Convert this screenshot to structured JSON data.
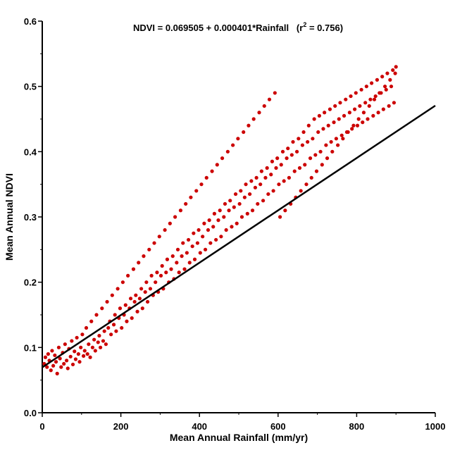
{
  "chart_data": {
    "type": "scatter",
    "title": "",
    "annotation": {
      "prefix": "NDVI = 0.069505 + 0.000401*Rainfall",
      "r2_open": "(r",
      "r2_sup": "2",
      "r2_rest": " = 0.756)"
    },
    "xlabel": "Mean Annual Rainfall (mm/yr)",
    "ylabel": "Mean Annual NDVI",
    "xlim": [
      0,
      1000
    ],
    "ylim": [
      0,
      0.6
    ],
    "xticks": [
      "0",
      "200",
      "400",
      "600",
      "800",
      "1000"
    ],
    "yticks": [
      "0.0",
      "0.1",
      "0.2",
      "0.3",
      "0.4",
      "0.5",
      "0.6"
    ],
    "grid": false,
    "legend": "none",
    "regression": {
      "intercept": 0.069505,
      "slope": 0.000401,
      "r2": 0.756,
      "x_range": [
        0,
        1000
      ]
    },
    "point_color": "#cc0000",
    "line_color": "#000000",
    "series": [
      {
        "values": [
          [
            5,
            0.075
          ],
          [
            8,
            0.085
          ],
          [
            12,
            0.07
          ],
          [
            15,
            0.09
          ],
          [
            18,
            0.08
          ],
          [
            22,
            0.065
          ],
          [
            25,
            0.095
          ],
          [
            28,
            0.072
          ],
          [
            32,
            0.088
          ],
          [
            35,
            0.078
          ],
          [
            38,
            0.06
          ],
          [
            42,
            0.1
          ],
          [
            45,
            0.083
          ],
          [
            48,
            0.07
          ],
          [
            52,
            0.092
          ],
          [
            55,
            0.075
          ],
          [
            58,
            0.105
          ],
          [
            62,
            0.08
          ],
          [
            65,
            0.068
          ],
          [
            68,
            0.098
          ],
          [
            72,
            0.086
          ],
          [
            75,
            0.11
          ],
          [
            78,
            0.074
          ],
          [
            82,
            0.094
          ],
          [
            85,
            0.082
          ],
          [
            88,
            0.115
          ],
          [
            92,
            0.09
          ],
          [
            95,
            0.078
          ],
          [
            98,
            0.1
          ],
          [
            102,
            0.12
          ],
          [
            105,
            0.087
          ],
          [
            108,
            0.095
          ],
          [
            112,
            0.13
          ],
          [
            115,
            0.09
          ],
          [
            118,
            0.105
          ],
          [
            122,
            0.085
          ],
          [
            125,
            0.14
          ],
          [
            128,
            0.1
          ],
          [
            132,
            0.112
          ],
          [
            135,
            0.095
          ],
          [
            138,
            0.15
          ],
          [
            142,
            0.108
          ],
          [
            145,
            0.118
          ],
          [
            148,
            0.1
          ],
          [
            152,
            0.16
          ],
          [
            155,
            0.11
          ],
          [
            158,
            0.125
          ],
          [
            162,
            0.105
          ],
          [
            165,
            0.17
          ],
          [
            168,
            0.13
          ],
          [
            172,
            0.14
          ],
          [
            175,
            0.12
          ],
          [
            178,
            0.18
          ],
          [
            182,
            0.135
          ],
          [
            185,
            0.15
          ],
          [
            188,
            0.125
          ],
          [
            192,
            0.19
          ],
          [
            195,
            0.145
          ],
          [
            198,
            0.16
          ],
          [
            202,
            0.13
          ],
          [
            205,
            0.2
          ],
          [
            208,
            0.15
          ],
          [
            212,
            0.165
          ],
          [
            215,
            0.14
          ],
          [
            218,
            0.21
          ],
          [
            222,
            0.16
          ],
          [
            225,
            0.175
          ],
          [
            228,
            0.145
          ],
          [
            232,
            0.22
          ],
          [
            235,
            0.17
          ],
          [
            238,
            0.18
          ],
          [
            242,
            0.155
          ],
          [
            245,
            0.23
          ],
          [
            248,
            0.175
          ],
          [
            252,
            0.19
          ],
          [
            255,
            0.16
          ],
          [
            258,
            0.24
          ],
          [
            262,
            0.185
          ],
          [
            265,
            0.2
          ],
          [
            268,
            0.17
          ],
          [
            272,
            0.25
          ],
          [
            275,
            0.19
          ],
          [
            278,
            0.21
          ],
          [
            282,
            0.18
          ],
          [
            285,
            0.26
          ],
          [
            288,
            0.2
          ],
          [
            292,
            0.215
          ],
          [
            295,
            0.185
          ],
          [
            298,
            0.27
          ],
          [
            302,
            0.21
          ],
          [
            305,
            0.225
          ],
          [
            308,
            0.19
          ],
          [
            312,
            0.28
          ],
          [
            315,
            0.215
          ],
          [
            318,
            0.235
          ],
          [
            322,
            0.2
          ],
          [
            325,
            0.29
          ],
          [
            328,
            0.22
          ],
          [
            332,
            0.24
          ],
          [
            335,
            0.205
          ],
          [
            338,
            0.3
          ],
          [
            342,
            0.23
          ],
          [
            345,
            0.25
          ],
          [
            348,
            0.215
          ],
          [
            352,
            0.31
          ],
          [
            355,
            0.24
          ],
          [
            358,
            0.26
          ],
          [
            362,
            0.22
          ],
          [
            365,
            0.32
          ],
          [
            368,
            0.245
          ],
          [
            372,
            0.265
          ],
          [
            375,
            0.23
          ],
          [
            378,
            0.33
          ],
          [
            382,
            0.255
          ],
          [
            385,
            0.275
          ],
          [
            388,
            0.235
          ],
          [
            392,
            0.34
          ],
          [
            395,
            0.26
          ],
          [
            398,
            0.28
          ],
          [
            402,
            0.245
          ],
          [
            405,
            0.35
          ],
          [
            408,
            0.27
          ],
          [
            412,
            0.29
          ],
          [
            415,
            0.25
          ],
          [
            418,
            0.36
          ],
          [
            422,
            0.28
          ],
          [
            425,
            0.295
          ],
          [
            428,
            0.26
          ],
          [
            432,
            0.37
          ],
          [
            435,
            0.285
          ],
          [
            438,
            0.305
          ],
          [
            442,
            0.265
          ],
          [
            445,
            0.38
          ],
          [
            448,
            0.295
          ],
          [
            452,
            0.31
          ],
          [
            455,
            0.27
          ],
          [
            458,
            0.39
          ],
          [
            462,
            0.3
          ],
          [
            465,
            0.32
          ],
          [
            468,
            0.28
          ],
          [
            472,
            0.4
          ],
          [
            475,
            0.31
          ],
          [
            478,
            0.325
          ],
          [
            482,
            0.285
          ],
          [
            485,
            0.41
          ],
          [
            488,
            0.315
          ],
          [
            492,
            0.335
          ],
          [
            495,
            0.29
          ],
          [
            498,
            0.42
          ],
          [
            502,
            0.32
          ],
          [
            505,
            0.34
          ],
          [
            508,
            0.3
          ],
          [
            512,
            0.43
          ],
          [
            515,
            0.33
          ],
          [
            518,
            0.35
          ],
          [
            522,
            0.305
          ],
          [
            525,
            0.44
          ],
          [
            528,
            0.335
          ],
          [
            532,
            0.355
          ],
          [
            535,
            0.31
          ],
          [
            538,
            0.45
          ],
          [
            542,
            0.345
          ],
          [
            545,
            0.36
          ],
          [
            548,
            0.32
          ],
          [
            552,
            0.46
          ],
          [
            555,
            0.35
          ],
          [
            558,
            0.37
          ],
          [
            562,
            0.325
          ],
          [
            565,
            0.47
          ],
          [
            568,
            0.36
          ],
          [
            572,
            0.375
          ],
          [
            575,
            0.335
          ],
          [
            578,
            0.48
          ],
          [
            582,
            0.365
          ],
          [
            585,
            0.385
          ],
          [
            588,
            0.34
          ],
          [
            592,
            0.49
          ],
          [
            595,
            0.375
          ],
          [
            598,
            0.39
          ],
          [
            602,
            0.35
          ],
          [
            605,
            0.3
          ],
          [
            608,
            0.38
          ],
          [
            612,
            0.4
          ],
          [
            615,
            0.355
          ],
          [
            618,
            0.31
          ],
          [
            622,
            0.39
          ],
          [
            625,
            0.405
          ],
          [
            628,
            0.36
          ],
          [
            632,
            0.32
          ],
          [
            635,
            0.395
          ],
          [
            638,
            0.415
          ],
          [
            642,
            0.37
          ],
          [
            645,
            0.33
          ],
          [
            648,
            0.4
          ],
          [
            652,
            0.42
          ],
          [
            655,
            0.375
          ],
          [
            658,
            0.34
          ],
          [
            662,
            0.41
          ],
          [
            665,
            0.43
          ],
          [
            668,
            0.38
          ],
          [
            672,
            0.35
          ],
          [
            675,
            0.415
          ],
          [
            678,
            0.44
          ],
          [
            682,
            0.39
          ],
          [
            685,
            0.36
          ],
          [
            688,
            0.42
          ],
          [
            692,
            0.45
          ],
          [
            695,
            0.395
          ],
          [
            698,
            0.37
          ],
          [
            702,
            0.43
          ],
          [
            705,
            0.455
          ],
          [
            708,
            0.4
          ],
          [
            712,
            0.38
          ],
          [
            715,
            0.435
          ],
          [
            718,
            0.46
          ],
          [
            722,
            0.41
          ],
          [
            725,
            0.39
          ],
          [
            728,
            0.44
          ],
          [
            732,
            0.465
          ],
          [
            735,
            0.415
          ],
          [
            738,
            0.4
          ],
          [
            742,
            0.445
          ],
          [
            745,
            0.47
          ],
          [
            748,
            0.42
          ],
          [
            752,
            0.41
          ],
          [
            755,
            0.45
          ],
          [
            758,
            0.475
          ],
          [
            762,
            0.425
          ],
          [
            765,
            0.42
          ],
          [
            768,
            0.455
          ],
          [
            772,
            0.48
          ],
          [
            775,
            0.43
          ],
          [
            778,
            0.43
          ],
          [
            782,
            0.46
          ],
          [
            785,
            0.485
          ],
          [
            788,
            0.435
          ],
          [
            792,
            0.44
          ],
          [
            795,
            0.465
          ],
          [
            798,
            0.49
          ],
          [
            802,
            0.44
          ],
          [
            805,
            0.45
          ],
          [
            808,
            0.47
          ],
          [
            812,
            0.495
          ],
          [
            815,
            0.445
          ],
          [
            818,
            0.46
          ],
          [
            822,
            0.475
          ],
          [
            825,
            0.5
          ],
          [
            828,
            0.45
          ],
          [
            832,
            0.47
          ],
          [
            835,
            0.48
          ],
          [
            838,
            0.505
          ],
          [
            842,
            0.455
          ],
          [
            845,
            0.48
          ],
          [
            848,
            0.485
          ],
          [
            852,
            0.51
          ],
          [
            855,
            0.46
          ],
          [
            858,
            0.49
          ],
          [
            862,
            0.49
          ],
          [
            865,
            0.515
          ],
          [
            868,
            0.465
          ],
          [
            872,
            0.5
          ],
          [
            875,
            0.495
          ],
          [
            878,
            0.52
          ],
          [
            882,
            0.47
          ],
          [
            885,
            0.51
          ],
          [
            888,
            0.5
          ],
          [
            892,
            0.525
          ],
          [
            895,
            0.475
          ],
          [
            898,
            0.52
          ],
          [
            900,
            0.53
          ]
        ]
      }
    ]
  }
}
